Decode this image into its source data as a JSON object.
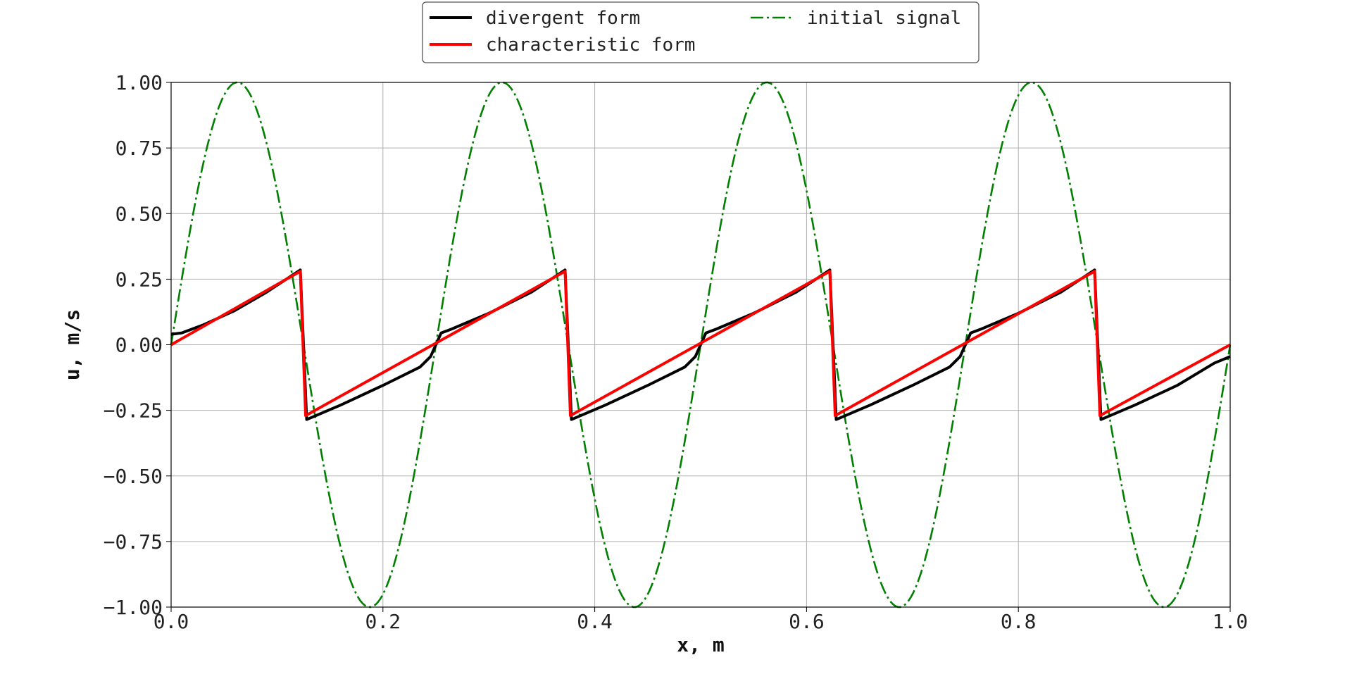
{
  "chart_data": {
    "type": "line",
    "title": "",
    "xlabel": "x, m",
    "ylabel": "u, m/s",
    "xlim": [
      0.0,
      1.0
    ],
    "ylim": [
      -1.0,
      1.0
    ],
    "grid": true,
    "legend_position": "top-center",
    "x_ticks": [
      "0.0",
      "0.2",
      "0.4",
      "0.6",
      "0.8",
      "1.0"
    ],
    "y_ticks": [
      "1.00",
      "0.75",
      "0.50",
      "0.25",
      "0.00",
      "−0.25",
      "−0.50",
      "−0.75",
      "−1.00"
    ],
    "series": [
      {
        "name": "divergent form",
        "color": "#000000",
        "style": "solid",
        "x": [
          0.0,
          0.01,
          0.03,
          0.06,
          0.09,
          0.122,
          0.125,
          0.128,
          0.16,
          0.2,
          0.235,
          0.245,
          0.25,
          0.255,
          0.265,
          0.3,
          0.34,
          0.372,
          0.375,
          0.378,
          0.41,
          0.45,
          0.485,
          0.495,
          0.5,
          0.505,
          0.515,
          0.55,
          0.59,
          0.622,
          0.625,
          0.628,
          0.66,
          0.7,
          0.735,
          0.745,
          0.75,
          0.755,
          0.765,
          0.8,
          0.84,
          0.872,
          0.875,
          0.878,
          0.91,
          0.95,
          0.985,
          1.0
        ],
        "y": [
          0.04,
          0.045,
          0.075,
          0.13,
          0.2,
          0.285,
          0.0,
          -0.285,
          -0.23,
          -0.155,
          -0.085,
          -0.045,
          0.0,
          0.045,
          0.06,
          0.12,
          0.2,
          0.285,
          0.0,
          -0.285,
          -0.23,
          -0.155,
          -0.085,
          -0.045,
          0.0,
          0.045,
          0.06,
          0.12,
          0.2,
          0.285,
          0.0,
          -0.285,
          -0.23,
          -0.155,
          -0.085,
          -0.045,
          0.0,
          0.045,
          0.06,
          0.12,
          0.2,
          0.285,
          0.0,
          -0.285,
          -0.23,
          -0.155,
          -0.07,
          -0.045
        ]
      },
      {
        "name": "characteristic form",
        "color": "#ff0000",
        "style": "solid",
        "x": [
          0.0,
          0.122,
          0.127,
          0.372,
          0.377,
          0.622,
          0.627,
          0.872,
          0.877,
          1.0
        ],
        "y": [
          0.0,
          0.28,
          -0.27,
          0.28,
          -0.27,
          0.28,
          -0.27,
          0.28,
          -0.27,
          0.0
        ]
      },
      {
        "name": "initial signal",
        "color": "#007f00",
        "style": "dashdot",
        "function": "sin(8*pi*x)"
      }
    ]
  }
}
